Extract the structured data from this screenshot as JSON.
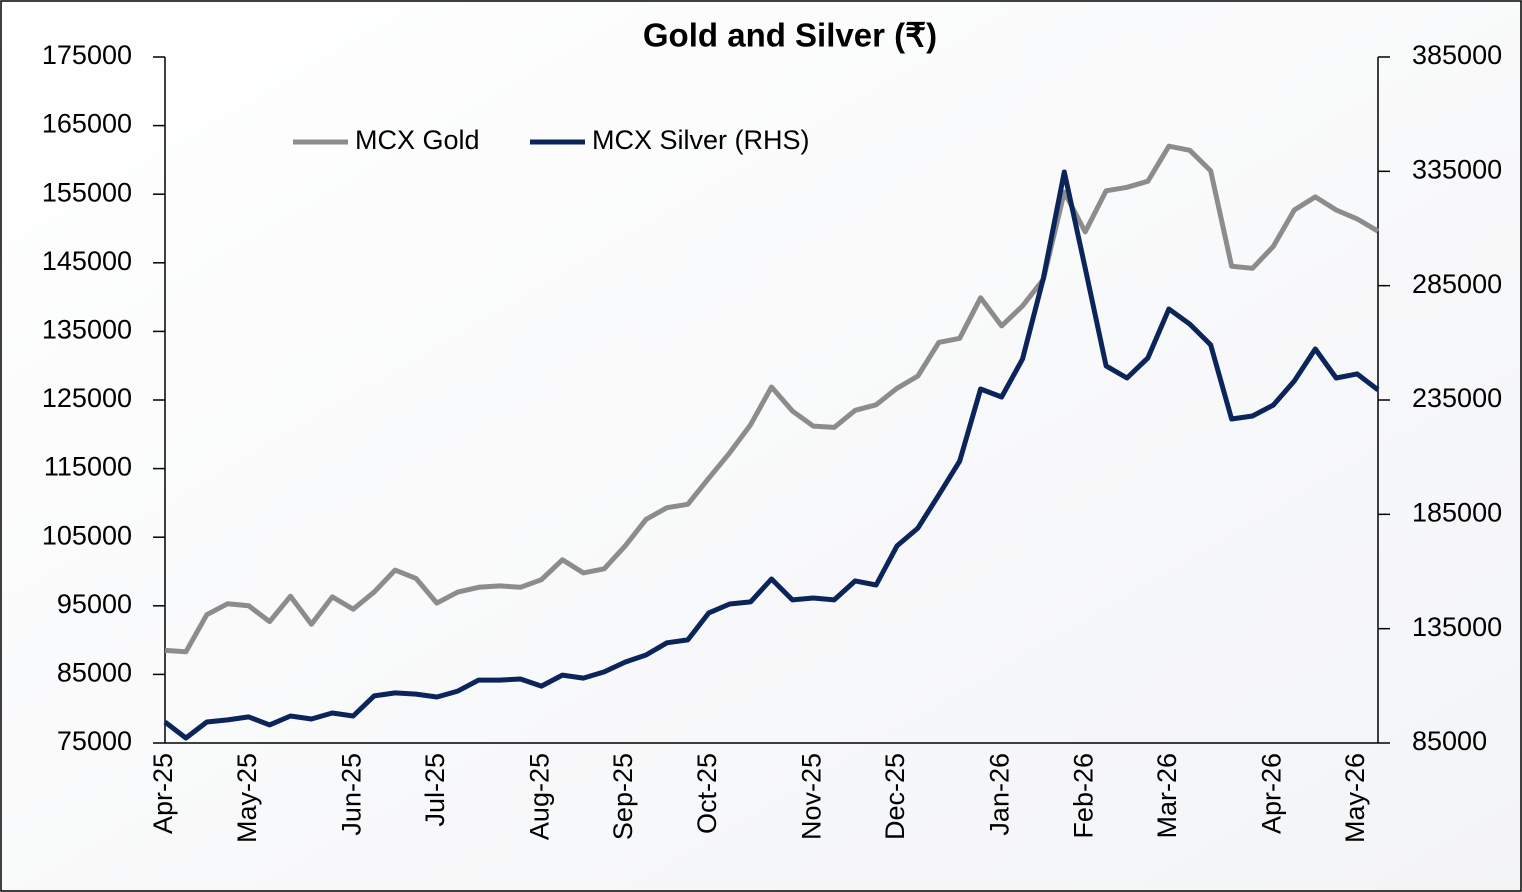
{
  "chart_data": {
    "type": "line",
    "title": "Gold and Silver (₹)",
    "categories": [
      "Apr-25",
      null,
      null,
      null,
      "May-25",
      null,
      null,
      null,
      null,
      "Jun-25",
      null,
      null,
      null,
      "Jul-25",
      null,
      null,
      null,
      null,
      "Aug-25",
      null,
      null,
      null,
      "Sep-25",
      null,
      null,
      null,
      "Oct-25",
      null,
      null,
      null,
      null,
      "Nov-25",
      null,
      null,
      null,
      "Dec-25",
      null,
      null,
      null,
      null,
      "Jan-26",
      null,
      null,
      null,
      "Feb-26",
      null,
      null,
      null,
      "Mar-26",
      null,
      null,
      null,
      null,
      "Apr-26",
      null,
      null,
      null,
      "May-26",
      null
    ],
    "series": [
      {
        "name": "MCX Gold",
        "color": "#8c8c8c",
        "axis": "y",
        "values": [
          88500,
          88300,
          93700,
          95300,
          95000,
          92700,
          96400,
          92300,
          96300,
          94500,
          97000,
          100200,
          99000,
          95400,
          97000,
          97700,
          97900,
          97700,
          98800,
          101700,
          99800,
          100400,
          103700,
          107600,
          109300,
          109800,
          113600,
          117300,
          121400,
          126900,
          123400,
          121200,
          121000,
          123500,
          124300,
          126700,
          128500,
          133400,
          134000,
          139900,
          135800,
          138700,
          142600,
          155300,
          149500,
          155500,
          156000,
          156900,
          162000,
          161400,
          158400,
          144500,
          144200,
          147400,
          152700,
          154600,
          152700,
          151400,
          149600
        ]
      },
      {
        "name": "MCX Silver (RHS)",
        "color": "#0b2459",
        "axis": "y2",
        "values": [
          94200,
          87200,
          94200,
          95100,
          96400,
          92900,
          96800,
          95500,
          98100,
          96800,
          105600,
          106900,
          106400,
          105100,
          107700,
          112500,
          112500,
          113000,
          109900,
          114700,
          113400,
          116100,
          120400,
          123500,
          128800,
          130100,
          141900,
          145800,
          146700,
          156700,
          147600,
          148400,
          147600,
          155900,
          154100,
          171200,
          179000,
          193500,
          208300,
          239800,
          236300,
          252900,
          288300,
          334700,
          292700,
          249900,
          244600,
          253400,
          274800,
          268200,
          259100,
          226700,
          228000,
          232800,
          243300,
          257300,
          244600,
          246400,
          239400
        ]
      }
    ],
    "ylim": [
      75000,
      175000
    ],
    "yticks": [
      75000,
      85000,
      95000,
      105000,
      115000,
      125000,
      135000,
      145000,
      155000,
      165000,
      175000
    ],
    "y2lim": [
      85000,
      385000
    ],
    "y2ticks": [
      85000,
      135000,
      185000,
      235000,
      285000,
      335000,
      385000
    ],
    "legend": "top-left"
  }
}
